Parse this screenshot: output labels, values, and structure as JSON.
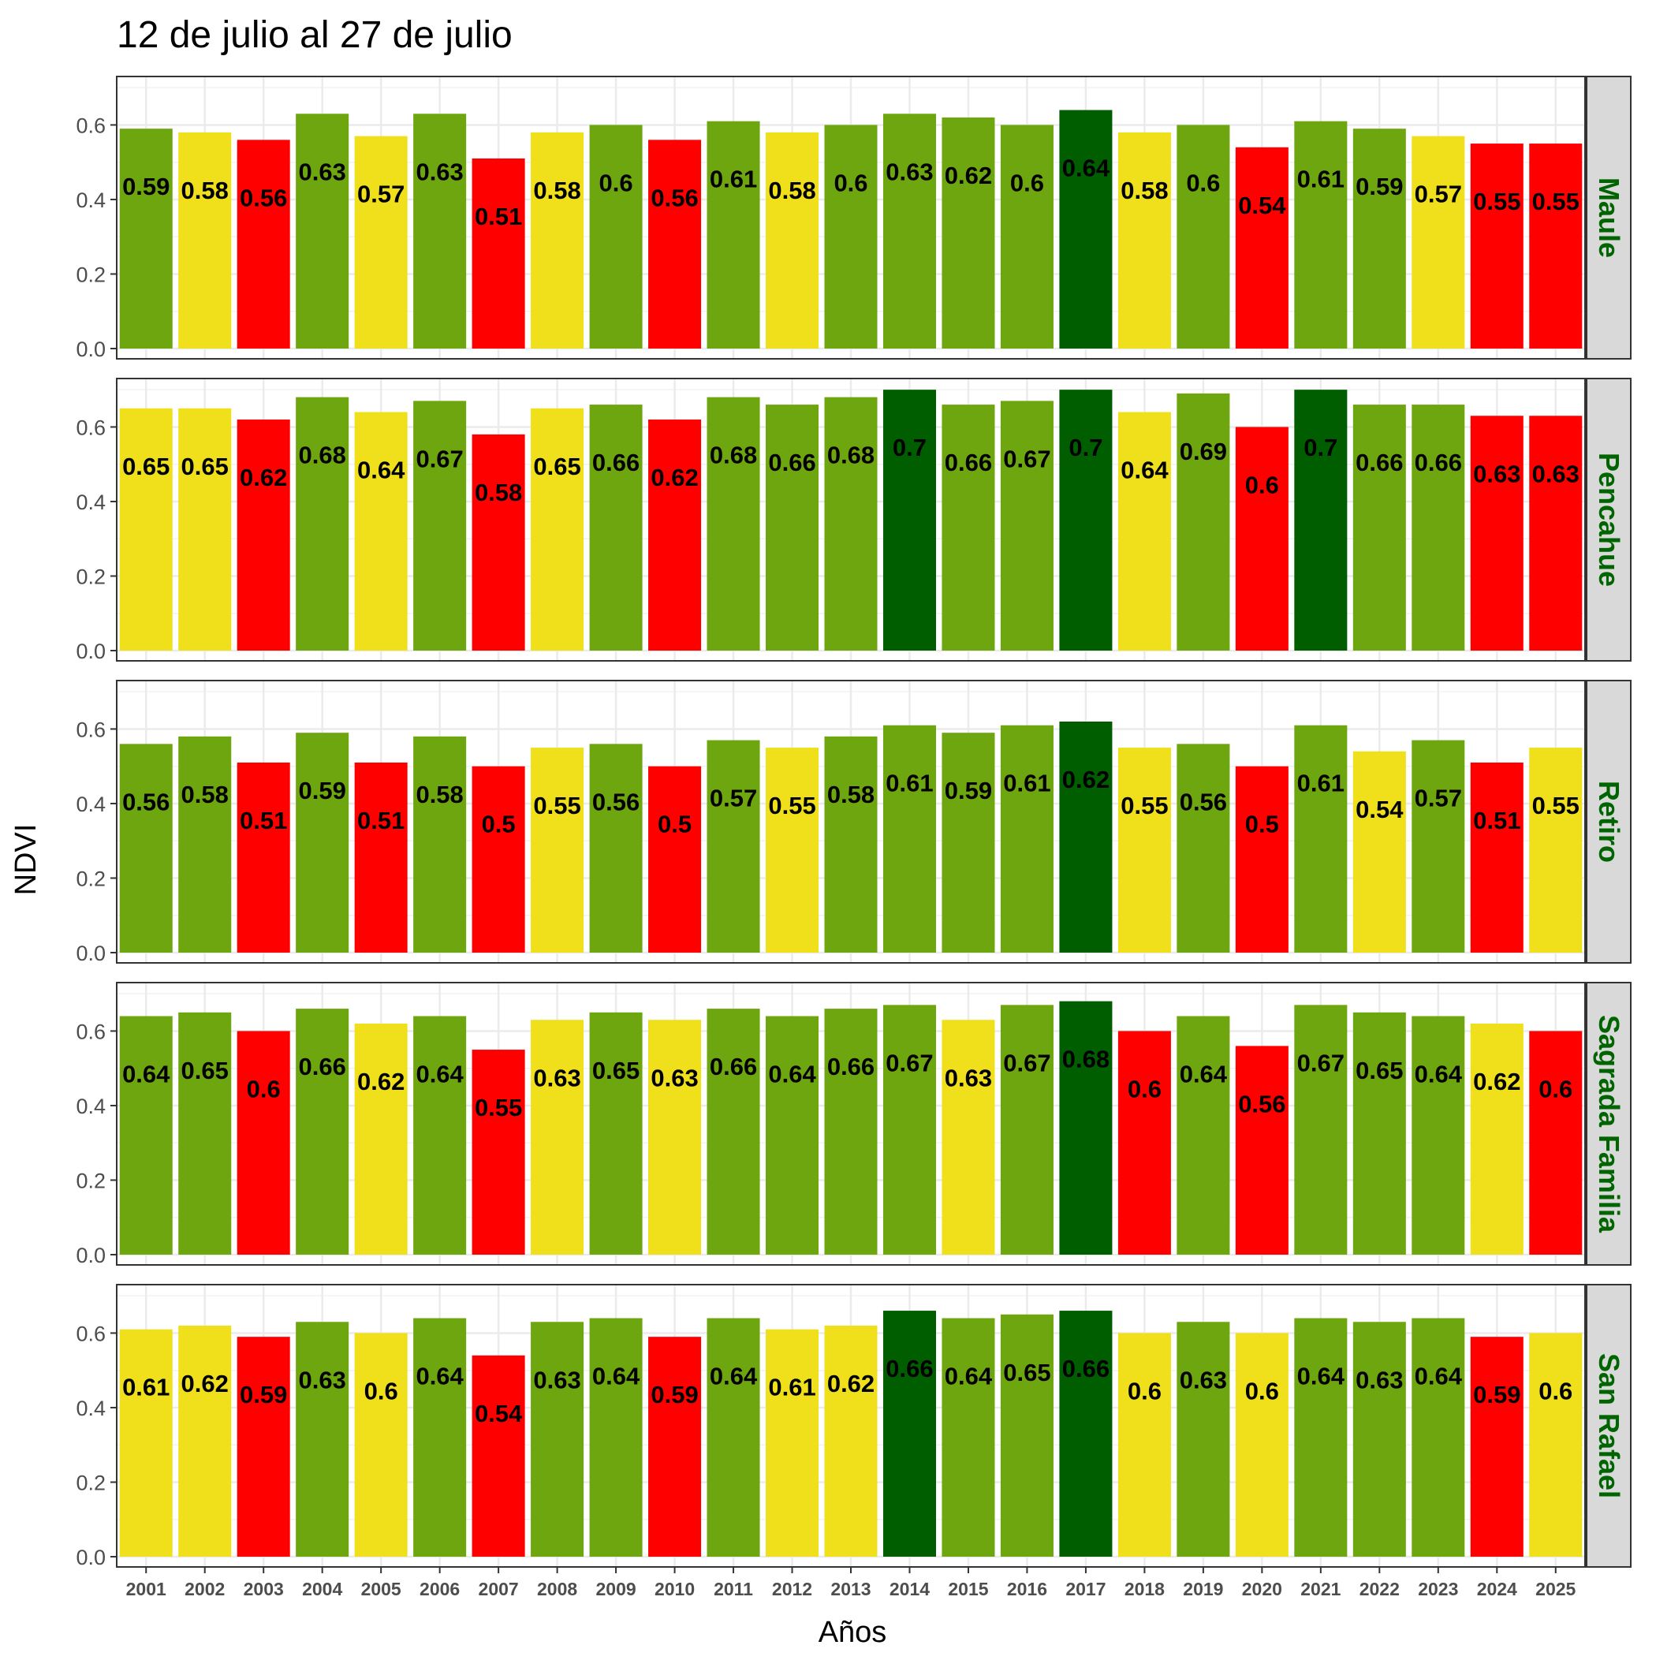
{
  "chart_data": {
    "type": "bar",
    "title": "12 de julio al 27 de julio",
    "xlabel": "Años",
    "ylabel": "NDVI",
    "ylim": [
      0,
      0.73
    ],
    "yticks": [
      "0.0",
      "0.2",
      "0.4",
      "0.6"
    ],
    "grid": true,
    "legend": "none",
    "categories": [
      "2001",
      "2002",
      "2003",
      "2004",
      "2005",
      "2006",
      "2007",
      "2008",
      "2009",
      "2010",
      "2011",
      "2012",
      "2013",
      "2014",
      "2015",
      "2016",
      "2017",
      "2018",
      "2019",
      "2020",
      "2021",
      "2022",
      "2023",
      "2024",
      "2025"
    ],
    "colors": {
      "red": "#ff0000",
      "yellow": "#f0e01c",
      "green": "#6ea610",
      "dark_green": "#005e00",
      "strip_text": "#006400",
      "strip_fill": "#d9d9d9"
    },
    "panels": [
      {
        "name": "Maule",
        "values": [
          0.59,
          0.58,
          0.56,
          0.63,
          0.57,
          0.63,
          0.51,
          0.58,
          0.6,
          0.56,
          0.61,
          0.58,
          0.6,
          0.63,
          0.62,
          0.6,
          0.64,
          0.58,
          0.6,
          0.54,
          0.61,
          0.59,
          0.57,
          0.55,
          0.55
        ],
        "labels": [
          "0.59",
          "0.58",
          "0.56",
          "0.63",
          "0.57",
          "0.63",
          "0.51",
          "0.58",
          "0.6",
          "0.56",
          "0.61",
          "0.58",
          "0.6",
          "0.63",
          "0.62",
          "0.6",
          "0.64",
          "0.58",
          "0.6",
          "0.54",
          "0.61",
          "0.59",
          "0.57",
          "0.55",
          "0.55"
        ],
        "bar_colors": [
          "green",
          "yellow",
          "red",
          "green",
          "yellow",
          "green",
          "red",
          "yellow",
          "green",
          "red",
          "green",
          "yellow",
          "green",
          "green",
          "green",
          "green",
          "dark_green",
          "yellow",
          "green",
          "red",
          "green",
          "green",
          "yellow",
          "red",
          "red"
        ]
      },
      {
        "name": "Pencahue",
        "values": [
          0.65,
          0.65,
          0.62,
          0.68,
          0.64,
          0.67,
          0.58,
          0.65,
          0.66,
          0.62,
          0.68,
          0.66,
          0.68,
          0.7,
          0.66,
          0.67,
          0.7,
          0.64,
          0.69,
          0.6,
          0.7,
          0.66,
          0.66,
          0.63,
          0.63
        ],
        "labels": [
          "0.65",
          "0.65",
          "0.62",
          "0.68",
          "0.64",
          "0.67",
          "0.58",
          "0.65",
          "0.66",
          "0.62",
          "0.68",
          "0.66",
          "0.68",
          "0.7",
          "0.66",
          "0.67",
          "0.7",
          "0.64",
          "0.69",
          "0.6",
          "0.7",
          "0.66",
          "0.66",
          "0.63",
          "0.63"
        ],
        "bar_colors": [
          "yellow",
          "yellow",
          "red",
          "green",
          "yellow",
          "green",
          "red",
          "yellow",
          "green",
          "red",
          "green",
          "green",
          "green",
          "dark_green",
          "green",
          "green",
          "dark_green",
          "yellow",
          "green",
          "red",
          "dark_green",
          "green",
          "green",
          "red",
          "red"
        ]
      },
      {
        "name": "Retiro",
        "values": [
          0.56,
          0.58,
          0.51,
          0.59,
          0.51,
          0.58,
          0.5,
          0.55,
          0.56,
          0.5,
          0.57,
          0.55,
          0.58,
          0.61,
          0.59,
          0.61,
          0.62,
          0.55,
          0.56,
          0.5,
          0.61,
          0.54,
          0.57,
          0.51,
          0.55
        ],
        "labels": [
          "0.56",
          "0.58",
          "0.51",
          "0.59",
          "0.51",
          "0.58",
          "0.5",
          "0.55",
          "0.56",
          "0.5",
          "0.57",
          "0.55",
          "0.58",
          "0.61",
          "0.59",
          "0.61",
          "0.62",
          "0.55",
          "0.56",
          "0.5",
          "0.61",
          "0.54",
          "0.57",
          "0.51",
          "0.55"
        ],
        "bar_colors": [
          "green",
          "green",
          "red",
          "green",
          "red",
          "green",
          "red",
          "yellow",
          "green",
          "red",
          "green",
          "yellow",
          "green",
          "green",
          "green",
          "green",
          "dark_green",
          "yellow",
          "green",
          "red",
          "green",
          "yellow",
          "green",
          "red",
          "yellow"
        ]
      },
      {
        "name": "Sagrada Familia",
        "values": [
          0.64,
          0.65,
          0.6,
          0.66,
          0.62,
          0.64,
          0.55,
          0.63,
          0.65,
          0.63,
          0.66,
          0.64,
          0.66,
          0.67,
          0.63,
          0.67,
          0.68,
          0.6,
          0.64,
          0.56,
          0.67,
          0.65,
          0.64,
          0.62,
          0.6
        ],
        "labels": [
          "0.64",
          "0.65",
          "0.6",
          "0.66",
          "0.62",
          "0.64",
          "0.55",
          "0.63",
          "0.65",
          "0.63",
          "0.66",
          "0.64",
          "0.66",
          "0.67",
          "0.63",
          "0.67",
          "0.68",
          "0.6",
          "0.64",
          "0.56",
          "0.67",
          "0.65",
          "0.64",
          "0.62",
          "0.6"
        ],
        "bar_colors": [
          "green",
          "green",
          "red",
          "green",
          "yellow",
          "green",
          "red",
          "yellow",
          "green",
          "yellow",
          "green",
          "green",
          "green",
          "green",
          "yellow",
          "green",
          "dark_green",
          "red",
          "green",
          "red",
          "green",
          "green",
          "green",
          "yellow",
          "red"
        ]
      },
      {
        "name": "San Rafael",
        "values": [
          0.61,
          0.62,
          0.59,
          0.63,
          0.6,
          0.64,
          0.54,
          0.63,
          0.64,
          0.59,
          0.64,
          0.61,
          0.62,
          0.66,
          0.64,
          0.65,
          0.66,
          0.6,
          0.63,
          0.6,
          0.64,
          0.63,
          0.64,
          0.59,
          0.6
        ],
        "labels": [
          "0.61",
          "0.62",
          "0.59",
          "0.63",
          "0.6",
          "0.64",
          "0.54",
          "0.63",
          "0.64",
          "0.59",
          "0.64",
          "0.61",
          "0.62",
          "0.66",
          "0.64",
          "0.65",
          "0.66",
          "0.6",
          "0.63",
          "0.6",
          "0.64",
          "0.63",
          "0.64",
          "0.59",
          "0.6"
        ],
        "bar_colors": [
          "yellow",
          "yellow",
          "red",
          "green",
          "yellow",
          "green",
          "red",
          "green",
          "green",
          "red",
          "green",
          "yellow",
          "yellow",
          "dark_green",
          "green",
          "green",
          "dark_green",
          "yellow",
          "green",
          "yellow",
          "green",
          "green",
          "green",
          "red",
          "yellow"
        ]
      }
    ]
  }
}
